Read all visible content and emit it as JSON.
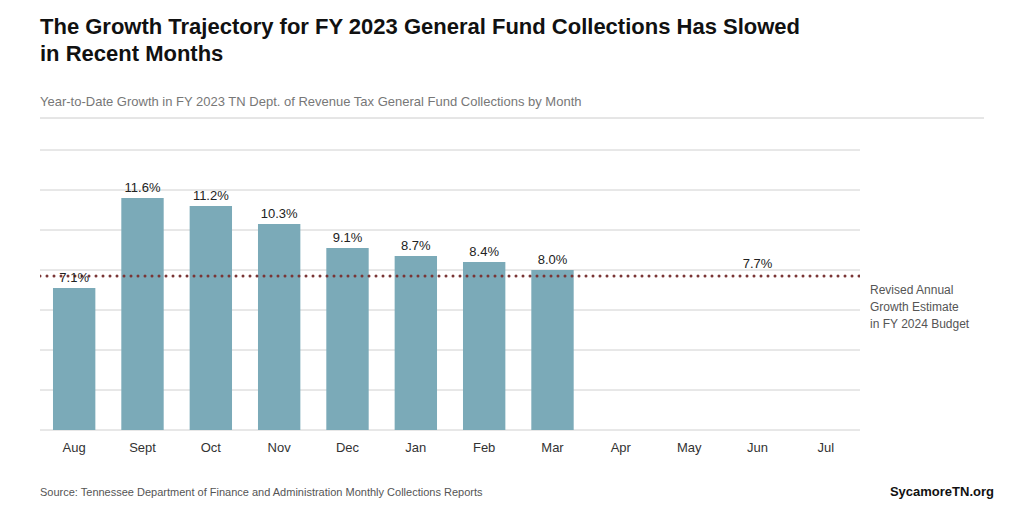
{
  "chart_data": {
    "type": "bar",
    "title": "The Growth Trajectory for FY 2023 General Fund Collections Has Slowed\nin Recent Months",
    "subtitle": "Year-to-Date Growth in FY 2023 TN Dept. of Revenue Tax General Fund Collections by Month",
    "categories": [
      "Aug",
      "Sept",
      "Oct",
      "Nov",
      "Dec",
      "Jan",
      "Feb",
      "Mar",
      "Apr",
      "May",
      "Jun",
      "Jul"
    ],
    "values": [
      7.1,
      11.6,
      11.2,
      10.3,
      9.1,
      8.7,
      8.4,
      8.0,
      null,
      null,
      null,
      null
    ],
    "value_labels": [
      "7.1%",
      "11.6%",
      "11.2%",
      "10.3%",
      "9.1%",
      "8.7%",
      "8.4%",
      "8.0%",
      null,
      null,
      null,
      null
    ],
    "data_labels": true,
    "color": "#7BAAB8",
    "reference_line": {
      "value": 7.7,
      "label": "7.7%",
      "text": "Revised Annual\nGrowth Estimate\nin FY 2024 Budget",
      "color": "#7A3535"
    },
    "ylim": [
      0,
      14
    ],
    "yticks": [
      0,
      2,
      4,
      6,
      8,
      10,
      12,
      14
    ],
    "grid": true,
    "tick_labels": "x",
    "source": "Source: Tennessee Department of Finance and Administration Monthly Collections Reports",
    "credit": "SycamoreTN.org"
  }
}
